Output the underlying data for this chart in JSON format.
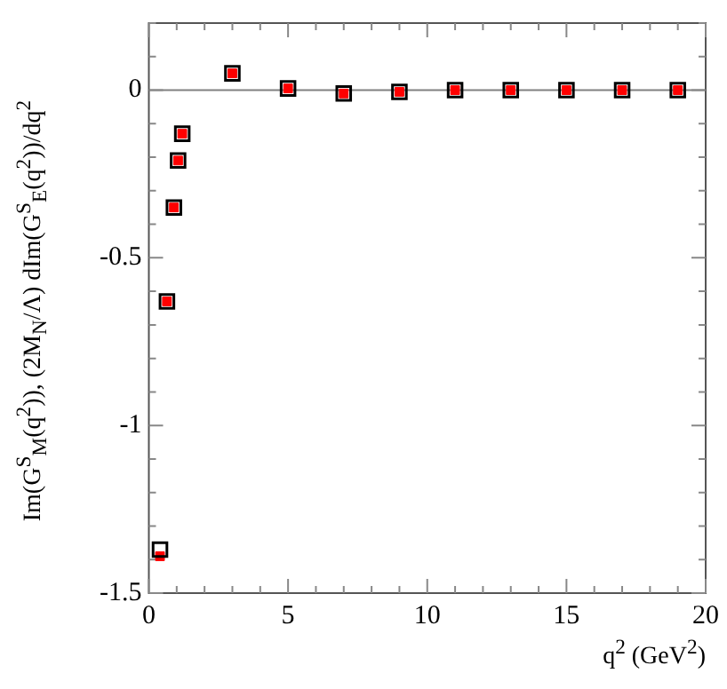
{
  "chart_data": {
    "type": "scatter",
    "xlabel": "q$^{2}$ (GeV$^{2}$)",
    "ylabel": "Im(G$^{S}$$_{M}$(q$^{2}$)),  (2M$_{N}$/Λ) dIm(G$^{S}$$_{E}$(q$^{2}$))/dq$^{2}$",
    "x": [
      0.4,
      0.65,
      0.9,
      1.05,
      1.2,
      3,
      5,
      7,
      9,
      11,
      13,
      15,
      17,
      19
    ],
    "series": [
      {
        "color": "#000000",
        "marker": "square",
        "values": [
          -1.37,
          -0.63,
          -0.35,
          -0.21,
          -0.13,
          0.05,
          0.005,
          -0.01,
          -0.005,
          0,
          0,
          0,
          0,
          0
        ]
      },
      {
        "color": "#ff0000",
        "marker": "square",
        "values": [
          -1.39,
          -0.63,
          -0.35,
          -0.21,
          -0.13,
          0.05,
          0.005,
          -0.01,
          -0.005,
          0,
          0,
          0,
          0,
          0
        ]
      }
    ],
    "xlim": [
      0,
      20
    ],
    "xticks": [
      0,
      {
        "value": 1,
        "label": null
      },
      {
        "value": 2,
        "label": null
      },
      {
        "value": 3,
        "label": null
      },
      {
        "value": 4,
        "label": null
      },
      5,
      {
        "value": 6,
        "label": null
      },
      {
        "value": 7,
        "label": null
      },
      {
        "value": 8,
        "label": null
      },
      {
        "value": 9,
        "label": null
      },
      10,
      {
        "value": 11,
        "label": null
      },
      {
        "value": 12,
        "label": null
      },
      {
        "value": 13,
        "label": null
      },
      {
        "value": 14,
        "label": null
      },
      15,
      {
        "value": 16,
        "label": null
      },
      {
        "value": 17,
        "label": null
      },
      {
        "value": 18,
        "label": null
      },
      {
        "value": 19,
        "label": null
      },
      20
    ],
    "ylim": [
      -1.5,
      0.2
    ],
    "yticks": [
      -1.5,
      {
        "value": -1.4,
        "label": null
      },
      {
        "value": -1.3,
        "label": null
      },
      {
        "value": -1.2,
        "label": null
      },
      {
        "value": -1.1,
        "label": null
      },
      -1,
      {
        "value": -0.9,
        "label": null
      },
      {
        "value": -0.8,
        "label": null
      },
      {
        "value": -0.7,
        "label": null
      },
      {
        "value": -0.6,
        "label": null
      },
      -0.5,
      {
        "value": -0.4,
        "label": null
      },
      {
        "value": -0.3,
        "label": null
      },
      {
        "value": -0.2,
        "label": null
      },
      {
        "value": -0.1,
        "label": null
      },
      0,
      {
        "value": 0.1,
        "label": null
      },
      {
        "value": 0.2,
        "label": null
      }
    ],
    "ref_lines": [
      {
        "axis": "y",
        "value": 0,
        "color": "#808080"
      }
    ],
    "grid": false,
    "legend": false
  }
}
